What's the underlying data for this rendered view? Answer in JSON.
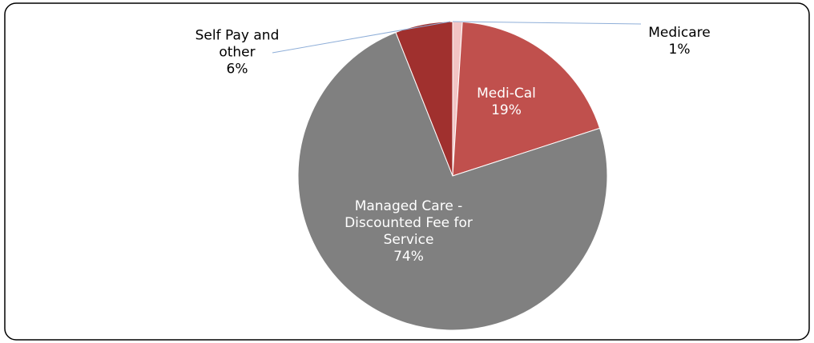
{
  "chart_data": {
    "type": "pie",
    "categories": [
      "Medicare",
      "Medi-Cal",
      "Managed Care - Discounted Fee for Service",
      "Self Pay and other"
    ],
    "values": [
      1,
      19,
      74,
      6
    ],
    "value_labels": [
      "1%",
      "19%",
      "74%",
      "6%"
    ],
    "colors": [
      "#f2c4c4",
      "#c0504d",
      "#808080",
      "#a0302e"
    ]
  }
}
